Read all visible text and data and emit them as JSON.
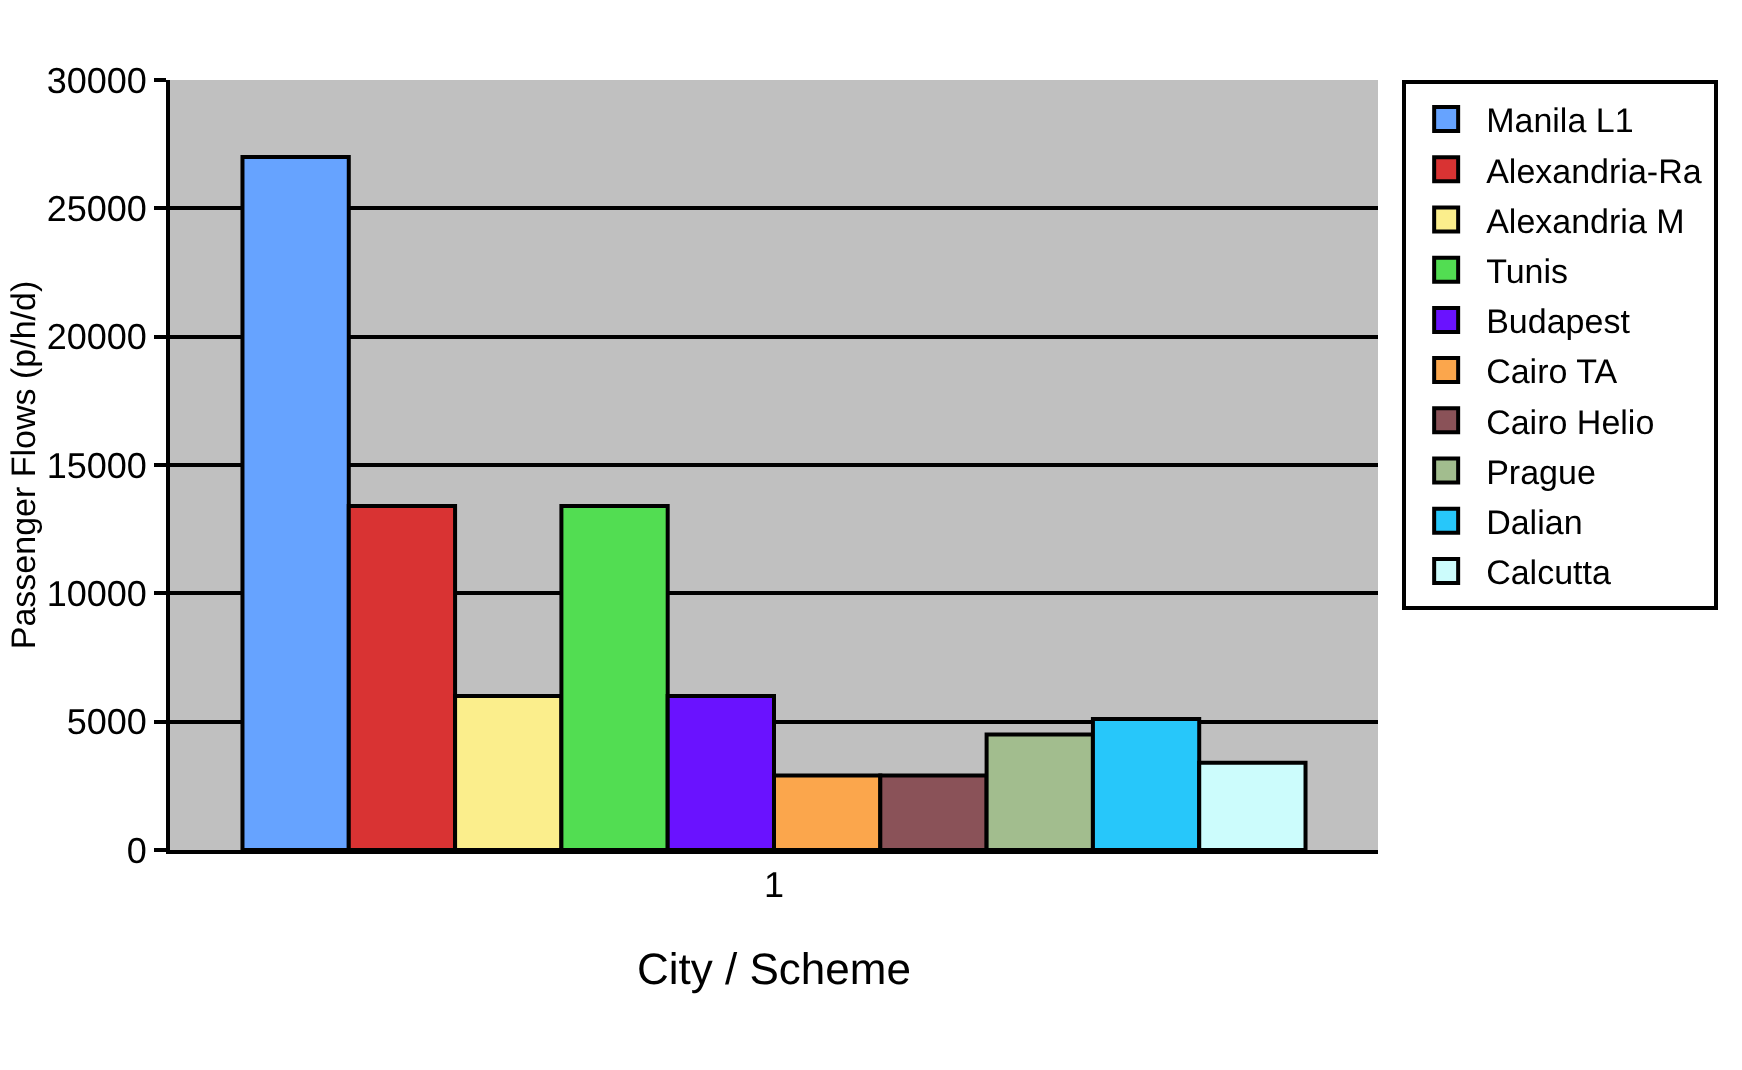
{
  "chart_data": {
    "type": "bar",
    "xlabel": "City / Scheme",
    "ylabel": "Passenger Flows (p/h/d)",
    "categories": [
      "1"
    ],
    "ylim": [
      0,
      30000
    ],
    "yticks": [
      0,
      5000,
      10000,
      15000,
      20000,
      25000,
      30000
    ],
    "grid": "y",
    "legend": "right",
    "series": [
      {
        "name": "Manila L1",
        "color": "#66a3ff",
        "values": [
          27000
        ]
      },
      {
        "name": "Alexandria-Ra",
        "color": "#d93333",
        "values": [
          13400
        ]
      },
      {
        "name": "Alexandria M",
        "color": "#fbee8c",
        "values": [
          6000
        ]
      },
      {
        "name": "Tunis",
        "color": "#52dd52",
        "values": [
          13400
        ]
      },
      {
        "name": "Budapest",
        "color": "#6a12ff",
        "values": [
          6000
        ]
      },
      {
        "name": "Cairo TA",
        "color": "#fba64c",
        "values": [
          2900
        ]
      },
      {
        "name": "Cairo Helio",
        "color": "#8a5258",
        "values": [
          2900
        ]
      },
      {
        "name": "Prague",
        "color": "#a2bd8e",
        "values": [
          4500
        ]
      },
      {
        "name": "Dalian",
        "color": "#27c7fa",
        "values": [
          5100
        ]
      },
      {
        "name": "Calcutta",
        "color": "#ccfcfc",
        "values": [
          3400
        ]
      }
    ]
  }
}
